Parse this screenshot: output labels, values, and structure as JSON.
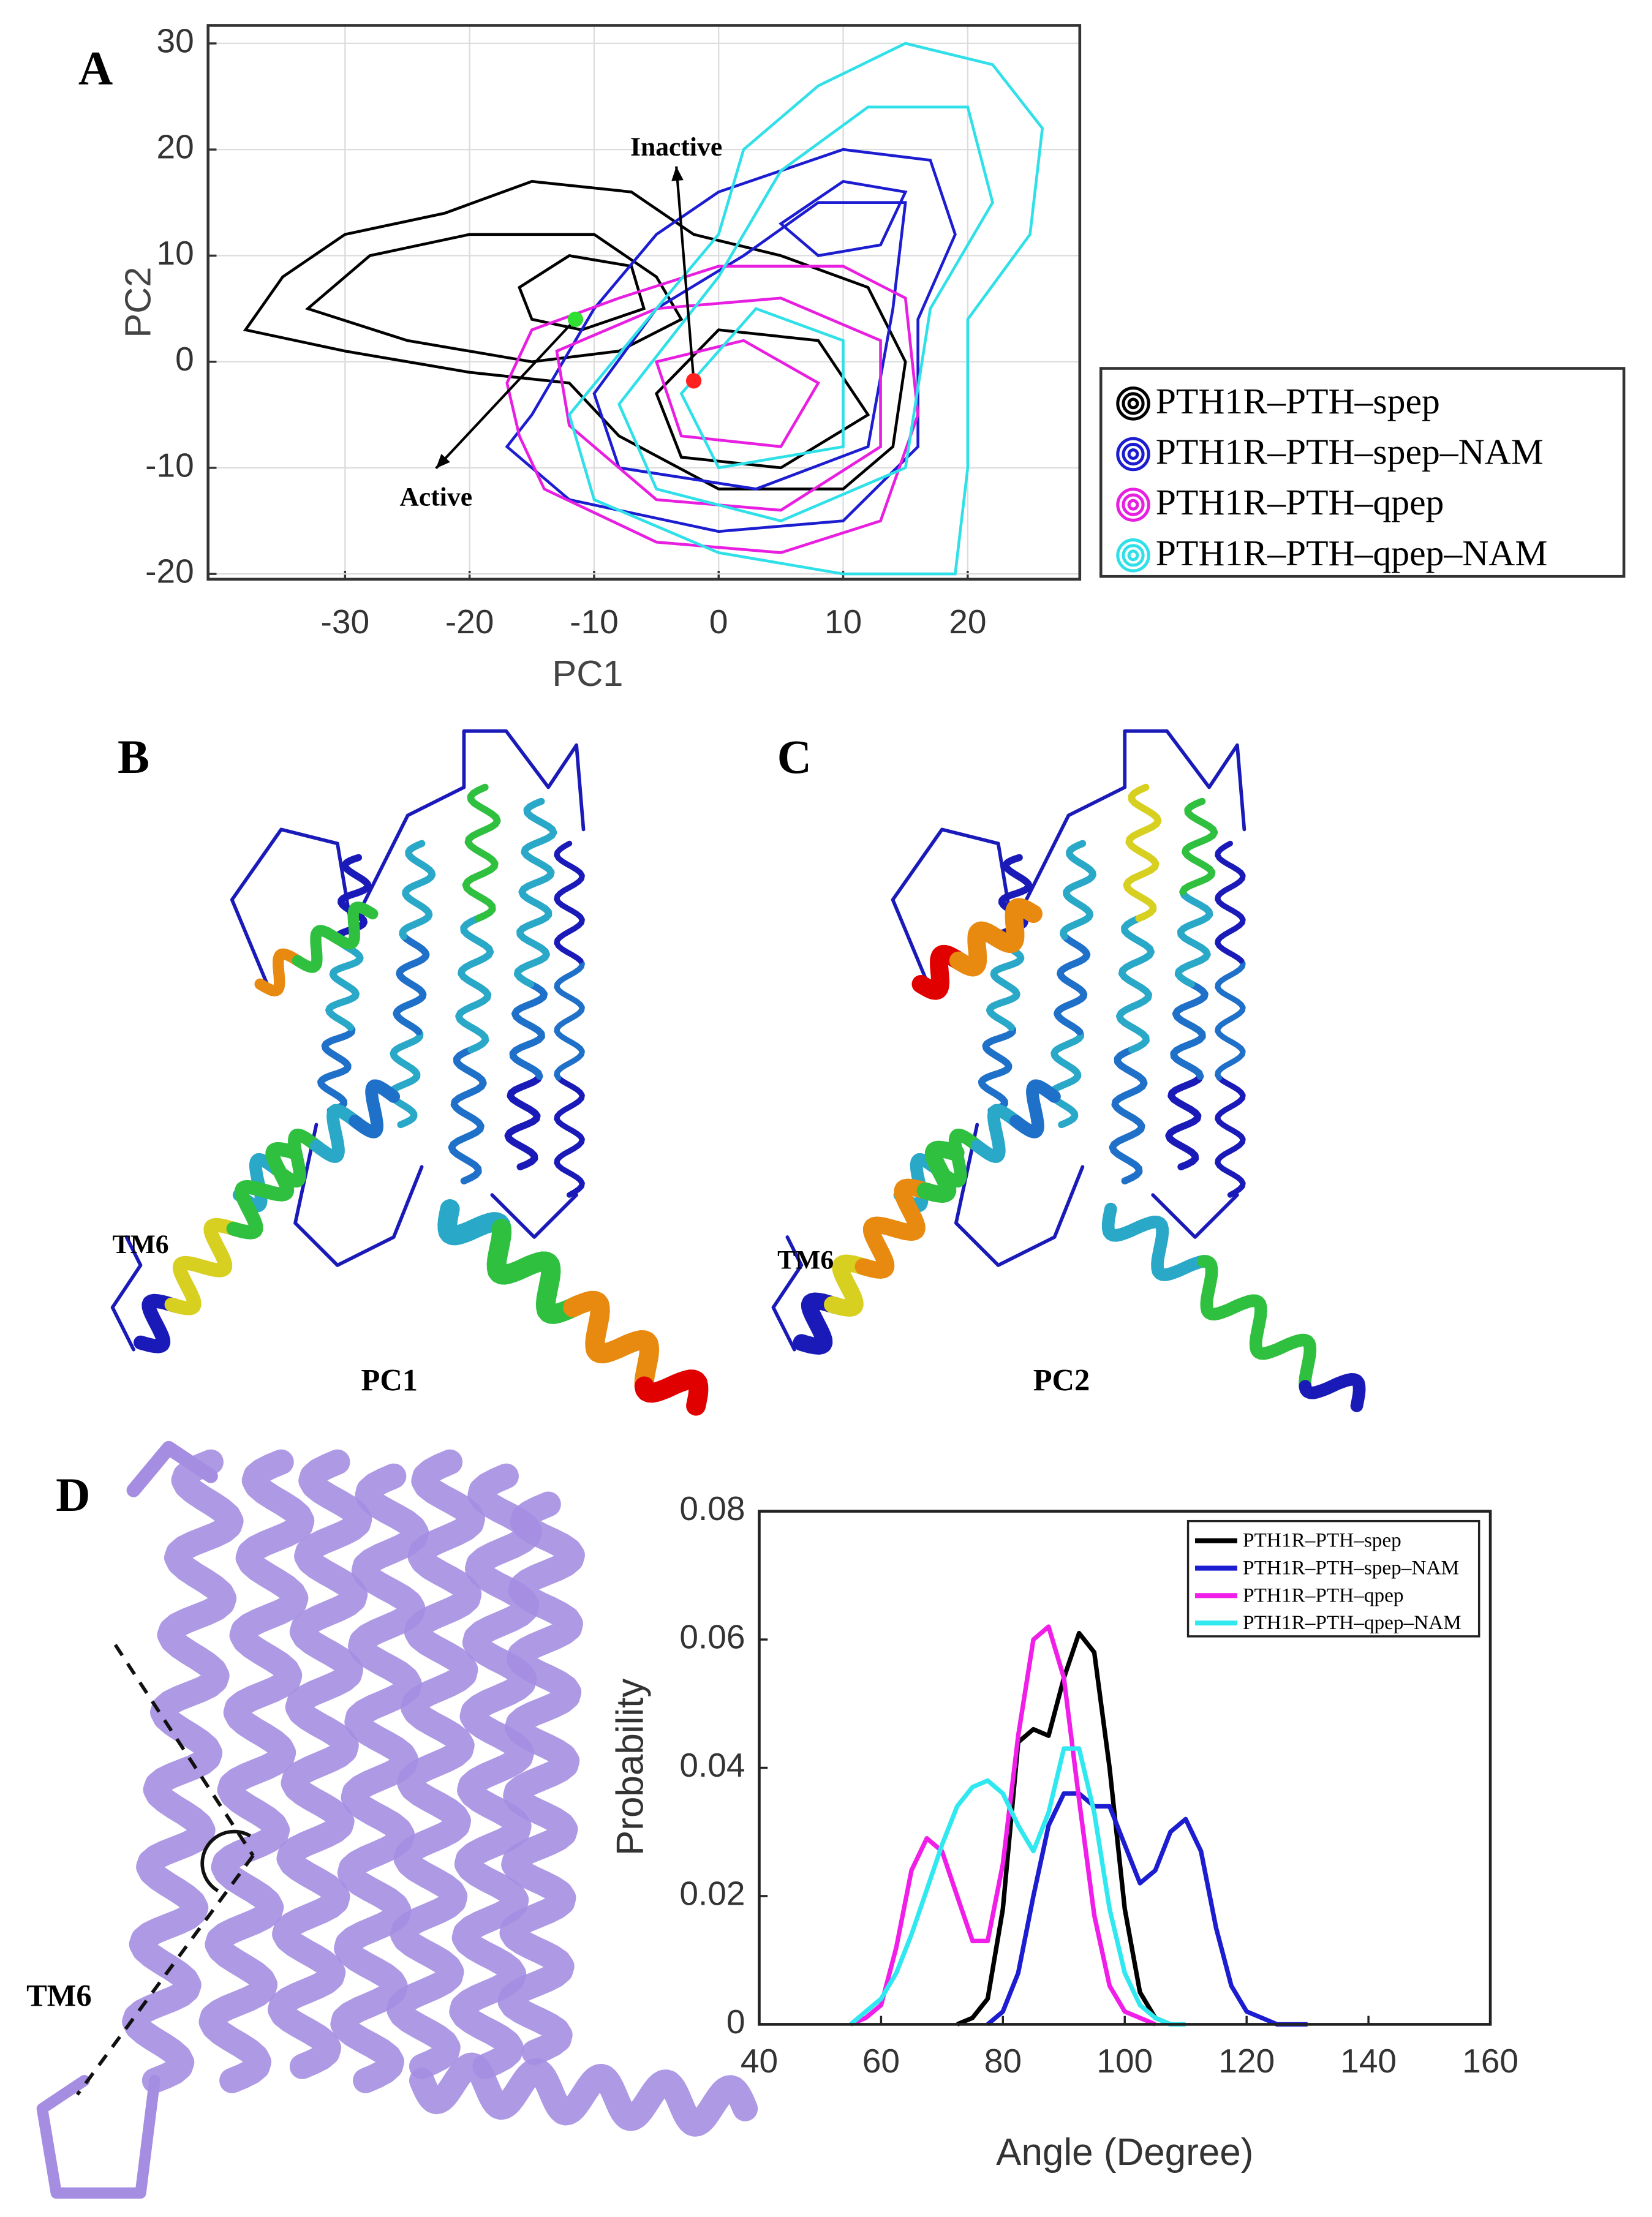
{
  "chart_data": [
    {
      "type": "contour",
      "panel": "A",
      "xlabel": "PC1",
      "ylabel": "PC2",
      "xlim": [
        -41,
        29
      ],
      "ylim": [
        -20.5,
        31.7
      ],
      "xticks": [
        -30,
        -20,
        -10,
        0,
        10,
        20
      ],
      "yticks": [
        -20,
        -10,
        0,
        10,
        20,
        30
      ],
      "grid": true,
      "legend": "right",
      "series": [
        {
          "name": "PTH1R–PTH–spep",
          "color": "#000000",
          "contours": [
            {
              "x": [
                -38,
                -35,
                -30,
                -22,
                -15,
                -7,
                -2,
                5,
                12,
                15,
                14,
                10,
                0,
                -8,
                -12,
                -20,
                -30
              ],
              "y": [
                3,
                8,
                12,
                14,
                17,
                16,
                12,
                10,
                7,
                0,
                -8,
                -12,
                -12,
                -7,
                -2,
                -1,
                1
              ]
            },
            {
              "x": [
                -33,
                -28,
                -20,
                -10,
                -5,
                -3,
                -8,
                -15,
                -25
              ],
              "y": [
                5,
                10,
                12,
                12,
                8,
                4,
                1,
                0,
                2
              ]
            },
            {
              "x": [
                -16,
                -12,
                -7,
                -6,
                -11,
                -15
              ],
              "y": [
                7,
                10,
                9,
                5,
                3,
                4
              ]
            },
            {
              "x": [
                -5,
                0,
                8,
                12,
                5,
                -3
              ],
              "y": [
                -3,
                3,
                2,
                -5,
                -10,
                -9
              ]
            }
          ]
        },
        {
          "name": "PTH1R–PTH–spep–NAM",
          "color": "#1c1cd0",
          "contours": [
            {
              "x": [
                -15,
                -10,
                -5,
                0,
                5,
                10,
                17,
                19,
                16,
                16,
                10,
                0,
                -12,
                -17
              ],
              "y": [
                -5,
                5,
                12,
                16,
                18,
                20,
                19,
                12,
                4,
                -8,
                -15,
                -16,
                -13,
                -8
              ]
            },
            {
              "x": [
                -10,
                -5,
                2,
                8,
                15,
                14,
                12,
                3,
                -8
              ],
              "y": [
                -3,
                5,
                10,
                15,
                15,
                5,
                -8,
                -12,
                -10
              ]
            },
            {
              "x": [
                5,
                10,
                15,
                13,
                8
              ],
              "y": [
                13,
                17,
                16,
                11,
                10
              ]
            }
          ]
        },
        {
          "name": "PTH1R–PTH–qpep",
          "color": "#e81ee0",
          "contours": [
            {
              "x": [
                -17,
                -15,
                -8,
                0,
                10,
                15,
                16,
                13,
                5,
                -5,
                -14,
                -16
              ],
              "y": [
                -2,
                3,
                6,
                9,
                9,
                6,
                -5,
                -15,
                -18,
                -17,
                -12,
                -7
              ]
            },
            {
              "x": [
                -13,
                -5,
                5,
                13,
                13,
                5,
                -5,
                -12
              ],
              "y": [
                1,
                5,
                6,
                2,
                -8,
                -14,
                -13,
                -6
              ]
            },
            {
              "x": [
                -5,
                2,
                8,
                5,
                -3
              ],
              "y": [
                0,
                2,
                -2,
                -8,
                -7
              ]
            }
          ]
        },
        {
          "name": "PTH1R–PTH–qpep–NAM",
          "color": "#30e0e8",
          "contours": [
            {
              "x": [
                -12,
                -5,
                0,
                2,
                8,
                15,
                22,
                26,
                25,
                20,
                20,
                19,
                10,
                0,
                -10
              ],
              "y": [
                -5,
                5,
                12,
                20,
                26,
                30,
                28,
                22,
                12,
                4,
                -10,
                -20,
                -20,
                -18,
                -13
              ]
            },
            {
              "x": [
                -8,
                0,
                5,
                12,
                20,
                22,
                17,
                15,
                5,
                -5
              ],
              "y": [
                -4,
                8,
                18,
                24,
                24,
                15,
                5,
                -10,
                -15,
                -12
              ]
            },
            {
              "x": [
                -3,
                3,
                10,
                10,
                0
              ],
              "y": [
                -3,
                5,
                2,
                -8,
                -10
              ]
            }
          ]
        }
      ],
      "points": [
        {
          "x": -2,
          "y": -1.8,
          "color": "#ff2020"
        },
        {
          "x": -11.5,
          "y": 4,
          "color": "#30e030"
        }
      ],
      "annotations": [
        {
          "text": "Inactive",
          "x": -3.4,
          "y": 20
        },
        {
          "text": "Active",
          "x": -22.7,
          "y": -12.7
        }
      ]
    },
    {
      "type": "line",
      "panel": "D",
      "xlabel": "Angle (Degree)",
      "ylabel": "Probability",
      "xlim": [
        40,
        160
      ],
      "ylim": [
        0,
        0.08
      ],
      "xticks": [
        40,
        60,
        80,
        100,
        120,
        140,
        160
      ],
      "yticks": [
        0,
        0.02,
        0.04,
        0.06,
        0.08
      ],
      "grid": false,
      "legend": "upper right",
      "x": [
        50,
        52.5,
        55,
        57.5,
        60,
        62.5,
        65,
        67.5,
        70,
        72.5,
        75,
        77.5,
        80,
        82.5,
        85,
        87.5,
        90,
        92.5,
        95,
        97.5,
        100,
        102.5,
        105,
        107.5,
        110,
        112.5,
        115,
        117.5,
        120,
        122.5,
        125,
        127.5,
        130,
        132.5,
        135
      ],
      "series": [
        {
          "name": "PTH1R–PTH–spep",
          "color": "#000000",
          "values": [
            null,
            null,
            null,
            null,
            null,
            null,
            null,
            null,
            null,
            0,
            0.001,
            0.004,
            0.018,
            0.044,
            0.046,
            0.045,
            0.054,
            0.061,
            0.058,
            0.04,
            0.018,
            0.005,
            0.001,
            0,
            null,
            null,
            null,
            null,
            null,
            null,
            null,
            null,
            null,
            null,
            null
          ]
        },
        {
          "name": "PTH1R–PTH–spep–NAM",
          "color": "#1c1cd0",
          "values": [
            null,
            null,
            null,
            null,
            null,
            null,
            null,
            null,
            null,
            null,
            null,
            0,
            0.002,
            0.008,
            0.02,
            0.031,
            0.036,
            0.036,
            0.034,
            0.034,
            0.028,
            0.022,
            0.024,
            0.03,
            0.032,
            0.027,
            0.015,
            0.006,
            0.002,
            0.001,
            0,
            0,
            0,
            null,
            null
          ]
        },
        {
          "name": "PTH1R–PTH–qpep",
          "color": "#f01ee8",
          "values": [
            null,
            null,
            0,
            0.001,
            0.003,
            0.012,
            0.024,
            0.029,
            0.027,
            0.02,
            0.013,
            0.013,
            0.025,
            0.045,
            0.06,
            0.062,
            0.054,
            0.035,
            0.017,
            0.006,
            0.002,
            0.001,
            0,
            null,
            null,
            null,
            null,
            null,
            null,
            null,
            null,
            null,
            null,
            null,
            null
          ]
        },
        {
          "name": "PTH1R–PTH–qpep–NAM",
          "color": "#30e8f0",
          "values": [
            null,
            null,
            0,
            0.002,
            0.004,
            0.008,
            0.014,
            0.021,
            0.028,
            0.034,
            0.037,
            0.038,
            0.036,
            0.031,
            0.027,
            0.033,
            0.043,
            0.043,
            0.033,
            0.018,
            0.008,
            0.003,
            0.001,
            0,
            0,
            null,
            null,
            null,
            null,
            null,
            null,
            null,
            null,
            null,
            null
          ]
        }
      ]
    }
  ],
  "images": [
    {
      "label": "B",
      "helix": "TM6",
      "caption": "PC1"
    },
    {
      "label": "C",
      "helix": "TM6",
      "caption": "PC2"
    },
    {
      "label": "D",
      "helix": "TM6"
    }
  ]
}
